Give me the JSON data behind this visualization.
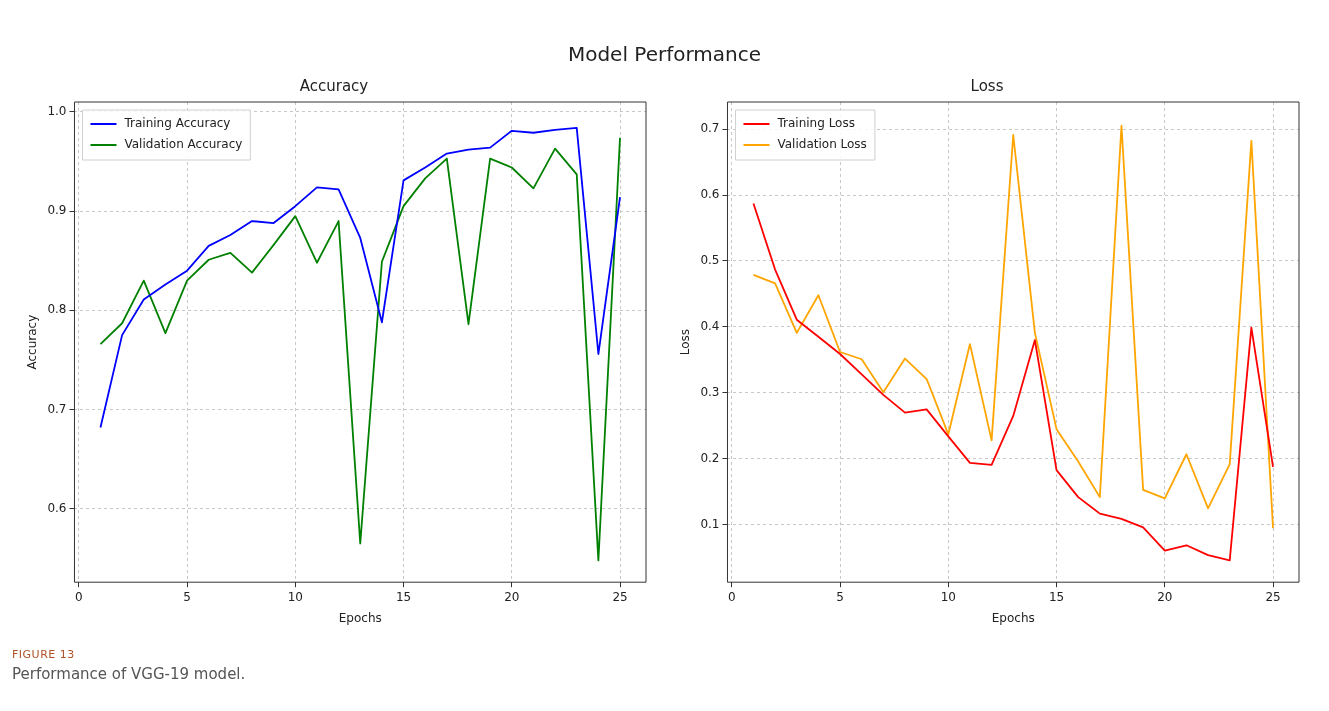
{
  "chart_data": [
    {
      "type": "other",
      "title": "Model Performance",
      "annotations": [
        "FIGURE 13",
        "Performance of VGG-19 model."
      ]
    },
    {
      "type": "line",
      "title": "Accuracy",
      "xlabel": "Epochs",
      "ylabel": "Accuracy",
      "x": [
        1,
        2,
        3,
        4,
        5,
        6,
        7,
        8,
        9,
        10,
        11,
        12,
        13,
        14,
        15,
        16,
        17,
        18,
        19,
        20,
        21,
        22,
        23,
        24,
        25
      ],
      "series": [
        {
          "name": "Training Accuracy",
          "color": "#0000ff",
          "values": [
            0.682,
            0.775,
            0.811,
            0.826,
            0.84,
            0.865,
            0.876,
            0.89,
            0.888,
            0.905,
            0.924,
            0.922,
            0.873,
            0.788,
            0.931,
            0.944,
            0.958,
            0.962,
            0.964,
            0.981,
            0.979,
            0.982,
            0.984,
            0.756,
            0.914
          ]
        },
        {
          "name": "Validation Accuracy",
          "color": "#008000",
          "values": [
            0.766,
            0.787,
            0.83,
            0.777,
            0.83,
            0.851,
            0.858,
            0.838,
            0.866,
            0.895,
            0.848,
            0.89,
            0.565,
            0.849,
            0.905,
            0.933,
            0.953,
            0.786,
            0.953,
            0.944,
            0.923,
            0.963,
            0.937,
            0.548,
            0.974
          ]
        }
      ],
      "xlim": [
        -0.2,
        26.2
      ],
      "xticks": [
        0,
        5,
        10,
        15,
        20,
        25
      ],
      "ylim": [
        0.526,
        1.01
      ],
      "yticks": [
        {
          "value": 0.6,
          "label": "0.6"
        },
        {
          "value": 0.7,
          "label": "0.7"
        },
        {
          "value": 0.8,
          "label": "0.8"
        },
        {
          "value": 0.9,
          "label": "0.9"
        },
        {
          "value": 1.0,
          "label": "1.0"
        }
      ],
      "grid": true,
      "legend": "top left",
      "marker": "none",
      "line_style": "solid"
    },
    {
      "type": "line",
      "title": "Loss",
      "xlabel": "Epochs",
      "ylabel": "Loss",
      "x": [
        1,
        2,
        3,
        4,
        5,
        6,
        7,
        8,
        9,
        10,
        11,
        12,
        13,
        14,
        15,
        16,
        17,
        18,
        19,
        20,
        21,
        22,
        23,
        24,
        25
      ],
      "series": [
        {
          "name": "Training Loss",
          "color": "#ff0000",
          "values": [
            0.587,
            0.487,
            0.411,
            0.385,
            0.359,
            0.328,
            0.297,
            0.27,
            0.275,
            0.234,
            0.194,
            0.191,
            0.265,
            0.38,
            0.183,
            0.142,
            0.117,
            0.109,
            0.096,
            0.061,
            0.069,
            0.054,
            0.046,
            0.399,
            0.188
          ]
        },
        {
          "name": "Validation Loss",
          "color": "#ffa500",
          "values": [
            0.479,
            0.466,
            0.391,
            0.448,
            0.362,
            0.351,
            0.301,
            0.352,
            0.321,
            0.237,
            0.374,
            0.228,
            0.691,
            0.391,
            0.245,
            0.196,
            0.142,
            0.705,
            0.153,
            0.14,
            0.207,
            0.125,
            0.192,
            0.682,
            0.095
          ]
        }
      ],
      "xlim": [
        -0.2,
        26.2
      ],
      "xticks": [
        0,
        5,
        10,
        15,
        20,
        25
      ],
      "ylim": [
        0.013,
        0.741
      ],
      "yticks": [
        0.1,
        0.2,
        0.3,
        0.4,
        0.5,
        0.6,
        0.7
      ],
      "grid": true,
      "legend": "top left",
      "marker": "none",
      "line_style": "solid"
    }
  ]
}
